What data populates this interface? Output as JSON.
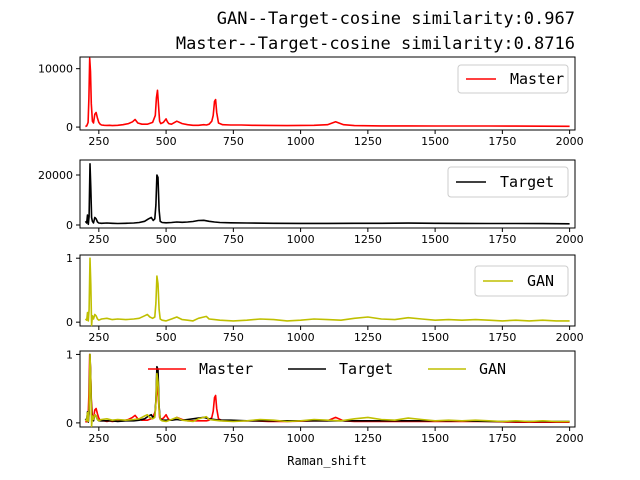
{
  "figure": {
    "title_line1": "GAN--Target-cosine similarity:0.967",
    "title_line2": "Master--Target-cosine similarity:0.8716",
    "xlabel": "Raman_shift"
  },
  "colors": {
    "Master": "#ff0000",
    "Target": "#000000",
    "GAN": "#bfbf00"
  },
  "chart_data": [
    {
      "type": "line",
      "title": "",
      "xlabel": "",
      "ylabel": "",
      "xlim": [
        180,
        2020
      ],
      "ylim": [
        -500,
        12000
      ],
      "xticks": [
        "250",
        "500",
        "750",
        "1000",
        "1250",
        "1500",
        "1750",
        "2000"
      ],
      "yticks": [
        "0",
        "10000"
      ],
      "legend": "top-right",
      "series": [
        {
          "name": "Master",
          "x": [
            200,
            205,
            210,
            213,
            216,
            219,
            222,
            226,
            230,
            235,
            240,
            245,
            250,
            255,
            260,
            270,
            280,
            290,
            300,
            320,
            340,
            360,
            375,
            385,
            395,
            410,
            430,
            450,
            460,
            464,
            468,
            472,
            476,
            480,
            490,
            500,
            505,
            510,
            520,
            540,
            560,
            580,
            600,
            620,
            640,
            650,
            660,
            670,
            675,
            680,
            684,
            688,
            695,
            710,
            740,
            780,
            820,
            880,
            950,
            1050,
            1100,
            1130,
            1160,
            1200,
            1300,
            1400,
            1500,
            1600,
            1700,
            1800,
            1900,
            2000
          ],
          "values": [
            100,
            200,
            800,
            5000,
            11800,
            9500,
            4000,
            1000,
            700,
            2200,
            2500,
            1500,
            800,
            500,
            350,
            300,
            280,
            300,
            250,
            300,
            400,
            600,
            900,
            1300,
            700,
            500,
            500,
            800,
            2000,
            5000,
            6300,
            3500,
            1000,
            600,
            800,
            1400,
            900,
            600,
            500,
            1000,
            600,
            400,
            300,
            300,
            400,
            350,
            500,
            1000,
            2000,
            4400,
            4700,
            2500,
            700,
            400,
            350,
            350,
            300,
            280,
            250,
            300,
            400,
            900,
            400,
            250,
            200,
            200,
            180,
            180,
            180,
            160,
            150,
            140
          ]
        }
      ]
    },
    {
      "type": "line",
      "title": "",
      "xlabel": "",
      "ylabel": "",
      "xlim": [
        180,
        2020
      ],
      "ylim": [
        -1200,
        26000
      ],
      "xticks": [
        "250",
        "500",
        "750",
        "1000",
        "1250",
        "1500",
        "1750",
        "2000"
      ],
      "yticks": [
        "0",
        "20000"
      ],
      "legend": "top-right",
      "series": [
        {
          "name": "Target",
          "x": [
            200,
            205,
            208,
            211,
            214,
            217,
            220,
            223,
            226,
            230,
            235,
            240,
            245,
            250,
            260,
            280,
            300,
            320,
            350,
            380,
            400,
            420,
            435,
            445,
            452,
            458,
            462,
            466,
            470,
            474,
            478,
            485,
            500,
            520,
            540,
            560,
            580,
            600,
            620,
            640,
            660,
            680,
            700,
            740,
            800,
            900,
            1000,
            1100,
            1200,
            1300,
            1400,
            1500,
            1600,
            1700,
            1800,
            1900,
            2000
          ],
          "values": [
            1500,
            800,
            4000,
            300,
            3500,
            24500,
            15000,
            3000,
            1500,
            800,
            3000,
            2500,
            1200,
            800,
            700,
            800,
            700,
            600,
            700,
            800,
            1000,
            1500,
            2500,
            3000,
            1800,
            2500,
            8000,
            20000,
            19000,
            6000,
            1500,
            1000,
            900,
            1000,
            1200,
            1100,
            1200,
            1400,
            1800,
            1900,
            1500,
            1200,
            1000,
            900,
            800,
            700,
            650,
            650,
            700,
            700,
            750,
            700,
            650,
            600,
            600,
            550,
            500
          ]
        }
      ]
    },
    {
      "type": "line",
      "title": "",
      "xlabel": "",
      "ylabel": "",
      "xlim": [
        180,
        2020
      ],
      "ylim": [
        -0.06,
        1.05
      ],
      "xticks": [
        "250",
        "500",
        "750",
        "1000",
        "1250",
        "1500",
        "1750",
        "2000"
      ],
      "yticks": [
        "0",
        "1"
      ],
      "legend": "top-right",
      "series": [
        {
          "name": "GAN",
          "x": [
            200,
            205,
            208,
            211,
            214,
            217,
            220,
            223,
            226,
            230,
            235,
            240,
            245,
            250,
            260,
            280,
            300,
            320,
            350,
            380,
            400,
            420,
            430,
            440,
            450,
            458,
            462,
            466,
            470,
            474,
            478,
            485,
            500,
            520,
            540,
            560,
            580,
            600,
            620,
            640,
            650,
            660,
            680,
            700,
            750,
            800,
            850,
            900,
            950,
            1000,
            1050,
            1100,
            1150,
            1200,
            1250,
            1300,
            1350,
            1400,
            1450,
            1500,
            1550,
            1600,
            1650,
            1700,
            1750,
            1800,
            1850,
            1900,
            1950,
            2000
          ],
          "values": [
            0.05,
            0.03,
            0.15,
            0.02,
            0.2,
            1.0,
            0.6,
            -0.05,
            0.1,
            0.05,
            0.12,
            0.1,
            0.05,
            0.03,
            0.05,
            0.06,
            0.04,
            0.05,
            0.04,
            0.05,
            0.06,
            0.1,
            0.12,
            0.08,
            0.06,
            0.08,
            0.3,
            0.72,
            0.6,
            0.2,
            0.05,
            0.03,
            0.02,
            0.05,
            0.08,
            0.04,
            0.03,
            0.02,
            0.06,
            0.08,
            0.09,
            0.05,
            0.04,
            0.03,
            0.02,
            0.03,
            0.05,
            0.04,
            0.02,
            0.03,
            0.05,
            0.04,
            0.03,
            0.06,
            0.08,
            0.05,
            0.04,
            0.07,
            0.05,
            0.03,
            0.04,
            0.03,
            0.04,
            0.03,
            0.02,
            0.03,
            0.02,
            0.03,
            0.02,
            0.02
          ]
        }
      ]
    },
    {
      "type": "line",
      "title": "",
      "xlabel": "Raman_shift",
      "ylabel": "",
      "xlim": [
        180,
        2020
      ],
      "ylim": [
        -0.06,
        1.05
      ],
      "xticks": [
        "250",
        "500",
        "750",
        "1000",
        "1250",
        "1500",
        "1750",
        "2000"
      ],
      "yticks": [
        "0",
        "1"
      ],
      "legend": "top-center",
      "series": [
        {
          "name": "Master",
          "x": [
            200,
            205,
            210,
            213,
            216,
            219,
            222,
            226,
            230,
            235,
            240,
            245,
            250,
            255,
            260,
            270,
            280,
            290,
            300,
            320,
            340,
            360,
            375,
            385,
            395,
            410,
            430,
            450,
            460,
            464,
            468,
            472,
            476,
            480,
            490,
            500,
            505,
            510,
            520,
            540,
            560,
            580,
            600,
            620,
            640,
            650,
            660,
            670,
            675,
            680,
            684,
            688,
            695,
            710,
            740,
            780,
            820,
            880,
            950,
            1050,
            1100,
            1130,
            1160,
            1200,
            1300,
            1400,
            1500,
            1600,
            1700,
            1800,
            1900,
            2000
          ],
          "values": [
            0.01,
            0.02,
            0.07,
            0.42,
            1.0,
            0.8,
            0.34,
            0.08,
            0.06,
            0.19,
            0.21,
            0.13,
            0.07,
            0.04,
            0.03,
            0.03,
            0.02,
            0.03,
            0.02,
            0.03,
            0.03,
            0.05,
            0.08,
            0.11,
            0.06,
            0.04,
            0.04,
            0.07,
            0.17,
            0.42,
            0.53,
            0.3,
            0.08,
            0.05,
            0.07,
            0.12,
            0.08,
            0.05,
            0.04,
            0.08,
            0.05,
            0.03,
            0.03,
            0.03,
            0.03,
            0.03,
            0.04,
            0.08,
            0.17,
            0.37,
            0.4,
            0.21,
            0.06,
            0.03,
            0.03,
            0.03,
            0.03,
            0.02,
            0.02,
            0.03,
            0.03,
            0.08,
            0.03,
            0.02,
            0.02,
            0.02,
            0.02,
            0.02,
            0.02,
            0.01,
            0.01,
            0.01
          ]
        },
        {
          "name": "Target",
          "x": [
            200,
            205,
            208,
            211,
            214,
            217,
            220,
            223,
            226,
            230,
            235,
            240,
            245,
            250,
            260,
            280,
            300,
            320,
            350,
            380,
            400,
            420,
            435,
            445,
            452,
            458,
            462,
            466,
            470,
            474,
            478,
            485,
            500,
            520,
            540,
            560,
            580,
            600,
            620,
            640,
            660,
            680,
            700,
            740,
            800,
            900,
            1000,
            1100,
            1200,
            1300,
            1400,
            1500,
            1600,
            1700,
            1800,
            1900,
            2000
          ],
          "values": [
            0.06,
            0.03,
            0.16,
            0.01,
            0.14,
            1.0,
            0.61,
            0.12,
            0.06,
            0.03,
            0.12,
            0.1,
            0.05,
            0.03,
            0.03,
            0.03,
            0.03,
            0.02,
            0.03,
            0.03,
            0.04,
            0.06,
            0.1,
            0.12,
            0.07,
            0.1,
            0.33,
            0.82,
            0.78,
            0.24,
            0.06,
            0.04,
            0.04,
            0.04,
            0.05,
            0.04,
            0.05,
            0.06,
            0.07,
            0.08,
            0.06,
            0.05,
            0.04,
            0.04,
            0.03,
            0.03,
            0.03,
            0.03,
            0.03,
            0.03,
            0.03,
            0.03,
            0.03,
            0.02,
            0.02,
            0.02,
            0.02
          ]
        },
        {
          "name": "GAN",
          "x": [
            200,
            205,
            208,
            211,
            214,
            217,
            220,
            223,
            226,
            230,
            235,
            240,
            245,
            250,
            260,
            280,
            300,
            320,
            350,
            380,
            400,
            420,
            430,
            440,
            450,
            458,
            462,
            466,
            470,
            474,
            478,
            485,
            500,
            520,
            540,
            560,
            580,
            600,
            620,
            640,
            650,
            660,
            680,
            700,
            750,
            800,
            850,
            900,
            950,
            1000,
            1050,
            1100,
            1150,
            1200,
            1250,
            1300,
            1350,
            1400,
            1450,
            1500,
            1550,
            1600,
            1650,
            1700,
            1750,
            1800,
            1850,
            1900,
            1950,
            2000
          ],
          "values": [
            0.05,
            0.03,
            0.15,
            0.02,
            0.2,
            1.0,
            0.6,
            -0.05,
            0.1,
            0.05,
            0.12,
            0.1,
            0.05,
            0.03,
            0.05,
            0.06,
            0.04,
            0.05,
            0.04,
            0.05,
            0.06,
            0.1,
            0.12,
            0.08,
            0.06,
            0.08,
            0.3,
            0.72,
            0.6,
            0.2,
            0.05,
            0.03,
            0.02,
            0.05,
            0.08,
            0.04,
            0.03,
            0.02,
            0.06,
            0.08,
            0.09,
            0.05,
            0.04,
            0.03,
            0.02,
            0.03,
            0.05,
            0.04,
            0.02,
            0.03,
            0.05,
            0.04,
            0.03,
            0.06,
            0.08,
            0.05,
            0.04,
            0.07,
            0.05,
            0.03,
            0.04,
            0.03,
            0.04,
            0.03,
            0.02,
            0.03,
            0.02,
            0.03,
            0.02,
            0.02
          ]
        }
      ]
    }
  ]
}
